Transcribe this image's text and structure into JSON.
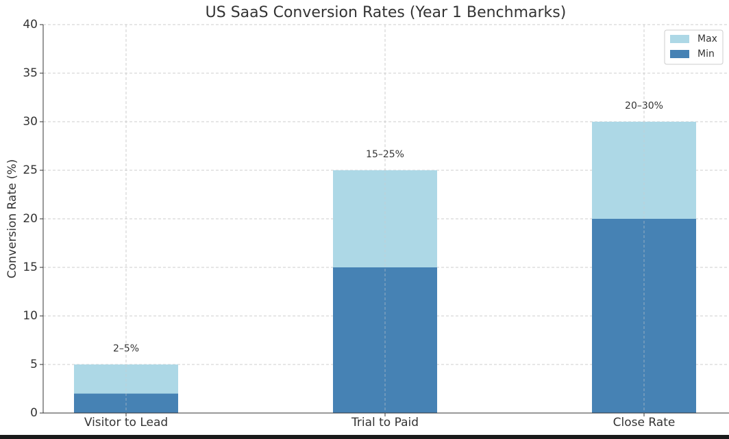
{
  "chart_data": {
    "type": "bar",
    "title": "US SaaS Conversion Rates (Year 1 Benchmarks)",
    "y_label": "Conversion Rate (%)",
    "categories": [
      "Visitor to Lead",
      "Trial to Paid",
      "Close Rate"
    ],
    "series": [
      {
        "name": "Max",
        "color": "#add8e6",
        "values": [
          5,
          25,
          30
        ]
      },
      {
        "name": "Min",
        "color": "#4682b4",
        "values": [
          2,
          15,
          20
        ]
      }
    ],
    "annotations": [
      "2–5%",
      "15–25%",
      "20–30%"
    ],
    "ylim": [
      0,
      40
    ],
    "yticks": [
      0,
      5,
      10,
      15,
      20,
      25,
      30,
      35,
      40
    ],
    "grid": true,
    "legend": "upper right"
  }
}
